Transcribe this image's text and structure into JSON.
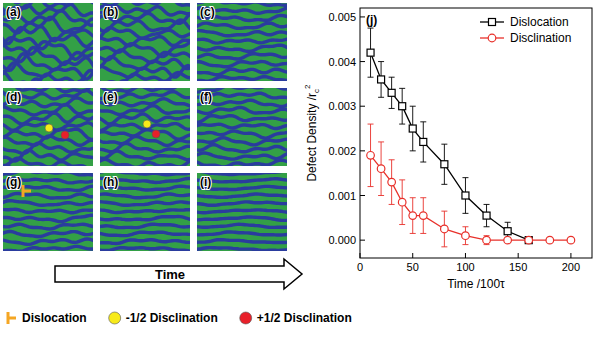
{
  "chart_data": {
    "type": "line",
    "title": "(j)",
    "xlabel": "Time /100τ",
    "ylabel": {
      "text": "Defect Density /r",
      "subscript": "c",
      "superscript": "2"
    },
    "xlim": [
      0,
      220
    ],
    "xticks": [
      0,
      50,
      100,
      150,
      200
    ],
    "ylim": [
      -0.0004,
      0.0052
    ],
    "yticks": [
      {
        "value": 0,
        "label": "0.000"
      },
      {
        "value": 0.001,
        "label": "0.001"
      },
      {
        "value": 0.002,
        "label": "0.002"
      },
      {
        "value": 0.003,
        "label": "0.003"
      },
      {
        "value": 0.004,
        "label": "0.004"
      },
      {
        "value": 0.005,
        "label": "0.005"
      }
    ],
    "grid": false,
    "legend": "upper right",
    "series": [
      {
        "name": "Dislocation",
        "color": "#000000",
        "marker": "square",
        "line_style": "solid",
        "x": [
          10,
          20,
          30,
          40,
          50,
          60,
          80,
          100,
          120,
          140,
          160
        ],
        "values": [
          0.0042,
          0.0036,
          0.0033,
          0.003,
          0.0025,
          0.0022,
          0.0017,
          0.001,
          0.00055,
          0.0002,
          0
        ],
        "errors": [
          0.00055,
          0.0004,
          0.00035,
          0.0004,
          0.0005,
          0.00045,
          0.00045,
          0.0004,
          0.00025,
          0.0002,
          5e-05
        ]
      },
      {
        "name": "Disclination",
        "color": "#e8302a",
        "marker": "circle",
        "line_style": "solid",
        "x": [
          10,
          20,
          30,
          40,
          50,
          60,
          80,
          100,
          120,
          140,
          160,
          180,
          200
        ],
        "values": [
          0.0019,
          0.0016,
          0.0013,
          0.00085,
          0.00055,
          0.00055,
          0.00025,
          0.0001,
          0,
          0,
          0,
          0,
          0
        ],
        "errors": [
          0.0007,
          0.0006,
          0.0005,
          0.0005,
          0.0004,
          0.0004,
          0.0004,
          0.0002,
          0.0001,
          5e-05,
          5e-05,
          5e-05,
          5e-05
        ]
      }
    ]
  },
  "panels": {
    "labels": [
      "(a)",
      "(b)",
      "(c)",
      "(d)",
      "(e)",
      "(f)",
      "(g)",
      "(h)",
      "(i)"
    ],
    "arrow_label": "Time"
  },
  "defect_legend": [
    "Dislocation",
    "-1/2 Disclination",
    "+1/2 Disclination"
  ]
}
